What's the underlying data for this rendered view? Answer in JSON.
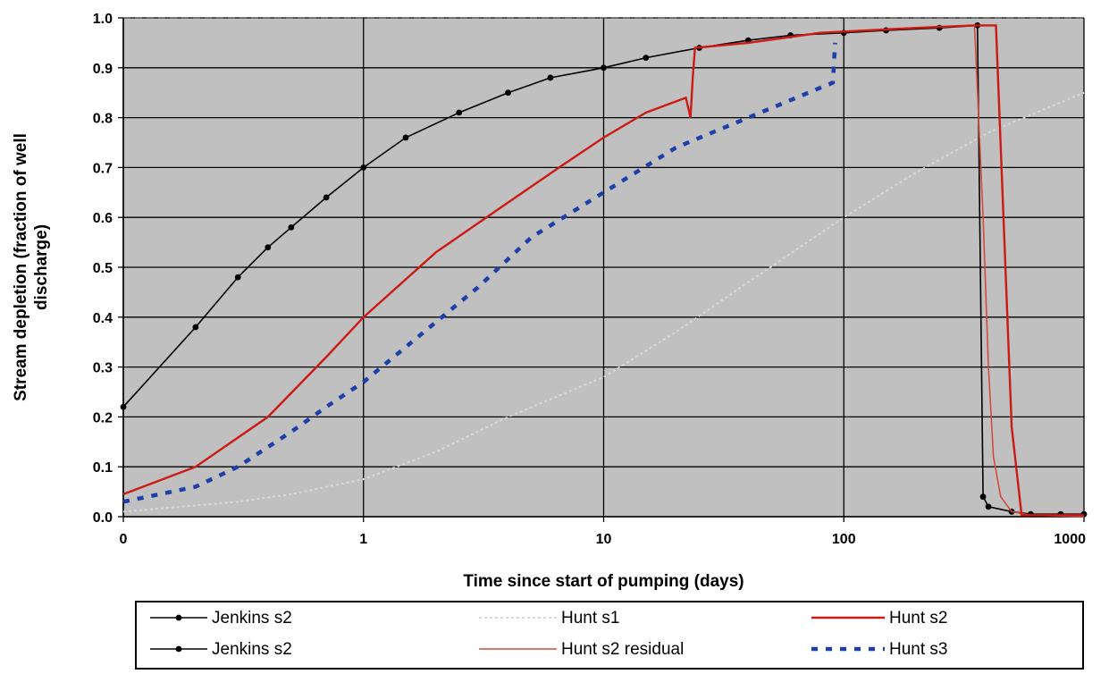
{
  "chart_data": {
    "type": "line",
    "xlabel": "Time since start of pumping (days)",
    "ylabel": "Stream depletion (fraction of well discharge)",
    "ylabel_lines": [
      "Stream depletion (fraction of well",
      "discharge)"
    ],
    "x_scale": "log",
    "x_ticks": [
      0.1,
      1,
      10,
      100,
      1000
    ],
    "x_tick_labels": [
      "0",
      "1",
      "10",
      "100",
      "1000"
    ],
    "y_ticks": [
      0.0,
      0.1,
      0.2,
      0.3,
      0.4,
      0.5,
      0.6,
      0.7,
      0.8,
      0.9,
      1.0
    ],
    "y_tick_labels": [
      "0.0",
      "0.1",
      "0.2",
      "0.3",
      "0.4",
      "0.5",
      "0.6",
      "0.7",
      "0.8",
      "0.9",
      "1.0"
    ],
    "xlim": [
      0.1,
      1000
    ],
    "ylim": [
      0,
      1
    ],
    "grid": true,
    "plot_background": "#c0c0c0",
    "legend_position": "bottom",
    "series": [
      {
        "name": "Jenkins s2",
        "color": "#000000",
        "style": "solid-markers",
        "x": [
          0.1,
          0.2,
          0.3,
          0.4,
          0.5,
          0.7,
          1,
          1.5,
          2.5,
          4,
          6,
          10,
          15,
          25,
          40,
          60,
          100,
          150,
          250,
          360,
          380,
          400,
          500,
          600,
          800,
          1000
        ],
        "y": [
          0.22,
          0.38,
          0.48,
          0.54,
          0.58,
          0.64,
          0.7,
          0.76,
          0.81,
          0.85,
          0.88,
          0.9,
          0.92,
          0.94,
          0.955,
          0.965,
          0.97,
          0.975,
          0.98,
          0.985,
          0.04,
          0.02,
          0.01,
          0.005,
          0.005,
          0.005
        ]
      },
      {
        "name": "Hunt s1",
        "color": "#d8d8d8",
        "style": "dotted",
        "x": [
          0.1,
          0.3,
          0.5,
          1,
          2,
          4,
          10,
          20,
          40,
          100,
          200,
          400,
          1000
        ],
        "y": [
          0.01,
          0.03,
          0.045,
          0.075,
          0.13,
          0.2,
          0.28,
          0.37,
          0.47,
          0.6,
          0.69,
          0.77,
          0.85
        ]
      },
      {
        "name": "Hunt s2",
        "color": "#cc1a14",
        "style": "solid",
        "x": [
          0.1,
          0.2,
          0.4,
          0.7,
          1,
          2,
          4,
          7,
          10,
          15,
          22,
          23,
          23.5,
          24,
          40,
          80,
          200,
          350,
          400,
          430,
          500,
          550,
          1000
        ],
        "y": [
          0.045,
          0.1,
          0.2,
          0.32,
          0.4,
          0.53,
          0.63,
          0.71,
          0.76,
          0.81,
          0.84,
          0.8,
          0.88,
          0.94,
          0.95,
          0.97,
          0.98,
          0.985,
          0.985,
          0.985,
          0.18,
          0.003,
          0.003
        ]
      },
      {
        "name": "Hunt s2 residual",
        "color": "#d34a3c",
        "style": "solid-thin",
        "x": [
          350,
          380,
          400,
          420,
          450,
          500,
          600,
          1000
        ],
        "y": [
          0.985,
          0.6,
          0.3,
          0.12,
          0.04,
          0.01,
          0.003,
          0.0
        ]
      },
      {
        "name": "Hunt s3",
        "color": "#1f3fa8",
        "style": "dashed",
        "x": [
          0.1,
          0.2,
          0.3,
          0.5,
          0.7,
          1,
          2,
          3,
          5,
          10,
          20,
          40,
          80,
          90,
          92
        ],
        "y": [
          0.03,
          0.06,
          0.1,
          0.17,
          0.22,
          0.27,
          0.39,
          0.46,
          0.56,
          0.65,
          0.74,
          0.8,
          0.86,
          0.87,
          0.95
        ]
      }
    ],
    "legend": [
      {
        "label": "Jenkins s2",
        "series": 0
      },
      {
        "label": "Hunt s1",
        "series": 1
      },
      {
        "label": "Hunt s2",
        "series": 2
      },
      {
        "label": "Jenkins s2",
        "series": 0
      },
      {
        "label": "Hunt s2 residual",
        "series": 3
      },
      {
        "label": "Hunt s3",
        "series": 4
      }
    ]
  }
}
